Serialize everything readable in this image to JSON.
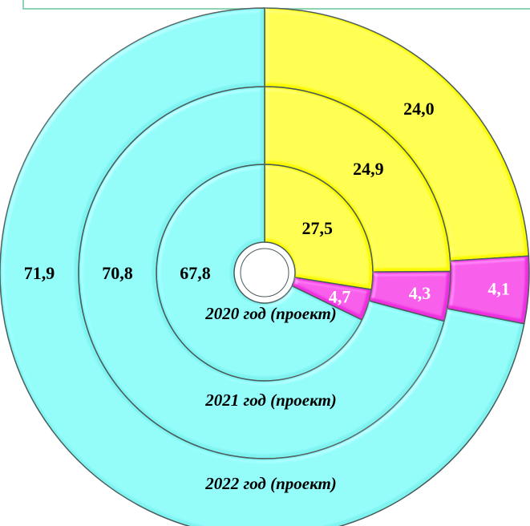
{
  "colors": {
    "cyan": "#7ef3f0",
    "yellow": "#fafa00",
    "magenta": "#ee2ee0",
    "stroke": "#4a5a5a"
  },
  "chart_data": {
    "type": "pie",
    "subtype": "multi-level-donut",
    "title": "",
    "rings": [
      {
        "name": "2020 год (проект)",
        "segments": [
          {
            "value": 27.5,
            "label": "27,5",
            "color": "yellow"
          },
          {
            "value": 4.7,
            "label": "4,7",
            "color": "magenta"
          },
          {
            "value": 67.8,
            "label": "67,8",
            "color": "cyan"
          }
        ]
      },
      {
        "name": "2021 год (проект)",
        "segments": [
          {
            "value": 24.9,
            "label": "24,9",
            "color": "yellow"
          },
          {
            "value": 4.3,
            "label": "4,3",
            "color": "magenta"
          },
          {
            "value": 70.8,
            "label": "70,8",
            "color": "cyan"
          }
        ]
      },
      {
        "name": "2022 год (проект)",
        "segments": [
          {
            "value": 24.0,
            "label": "24,0",
            "color": "yellow"
          },
          {
            "value": 4.1,
            "label": "4,1",
            "color": "magenta"
          },
          {
            "value": 71.9,
            "label": "71,9",
            "color": "cyan"
          }
        ]
      }
    ]
  }
}
